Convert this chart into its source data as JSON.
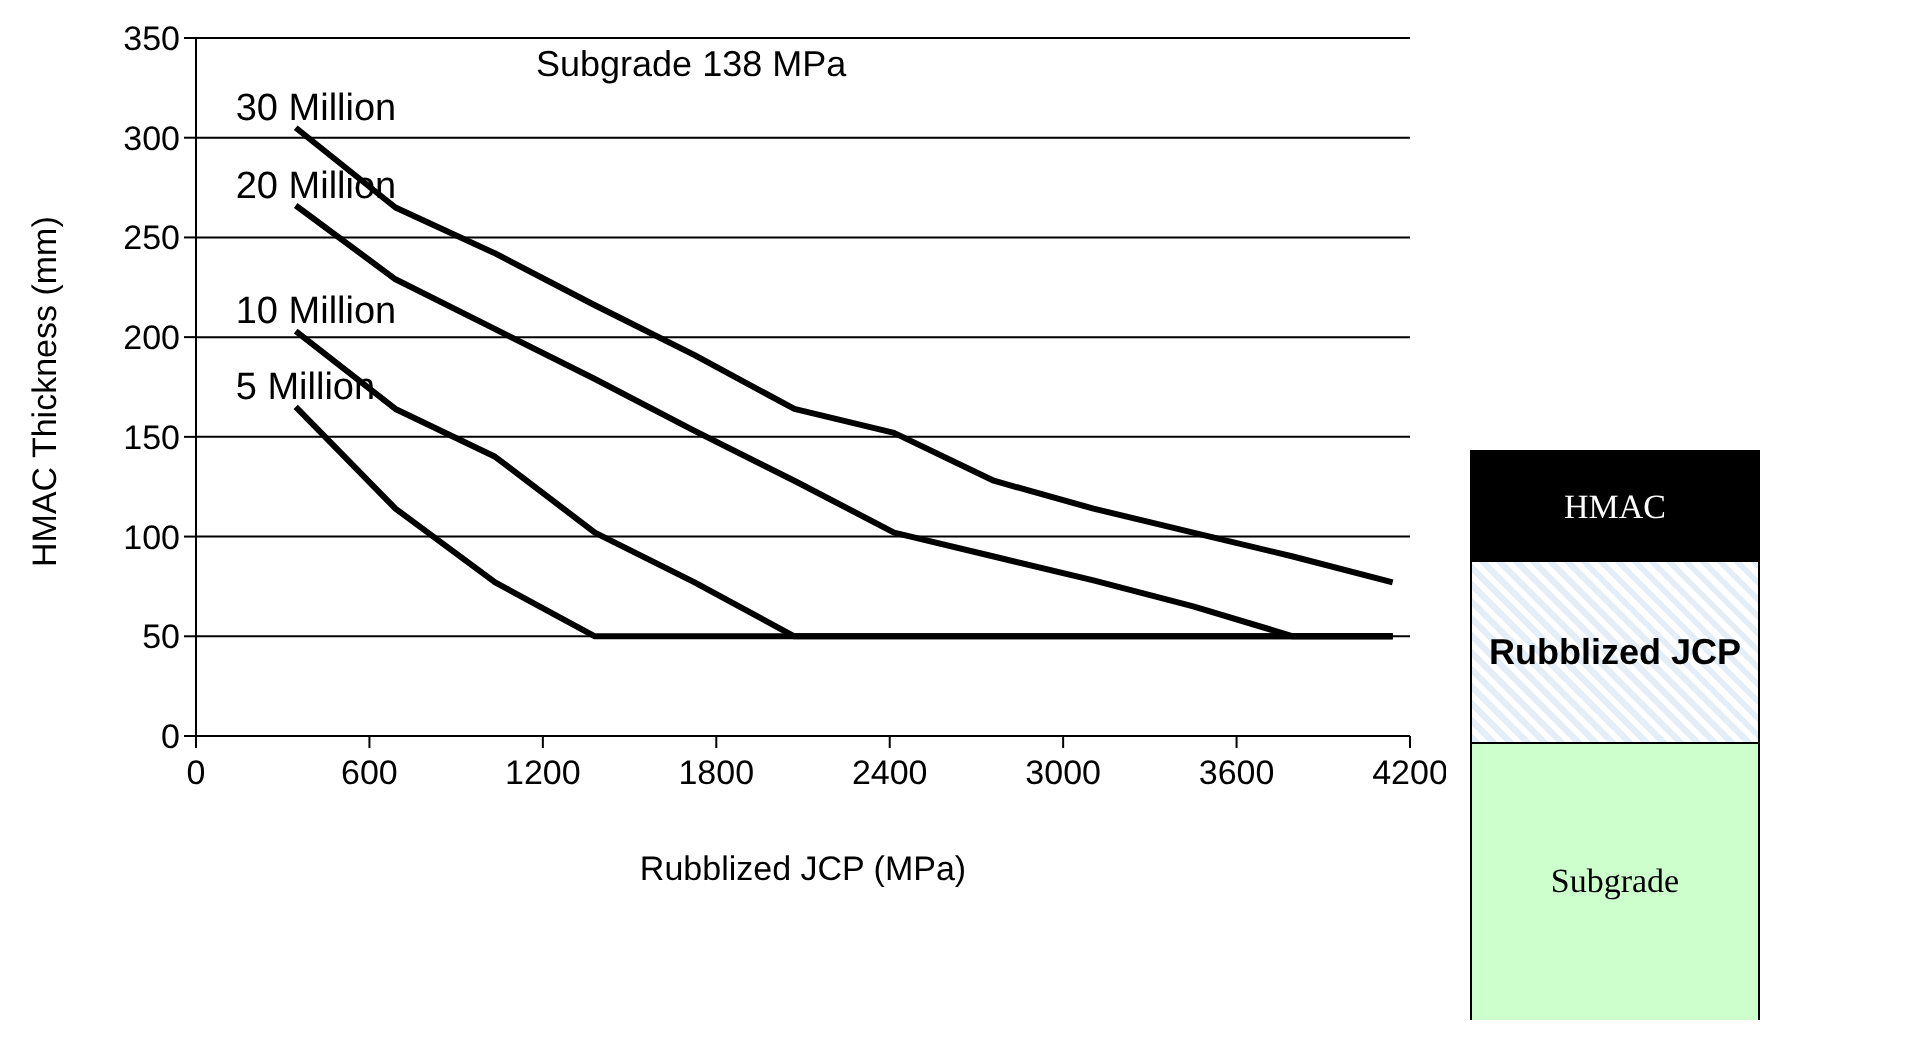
{
  "chart_data": {
    "type": "line",
    "title": "Subgrade 138 MPa",
    "xlabel": "Rubblized JCP (MPa)",
    "ylabel": "HMAC Thickness (mm)",
    "x": [
      345,
      690,
      1035,
      1380,
      1725,
      2070,
      2415,
      2760,
      3105,
      3450,
      3795,
      4140
    ],
    "series": [
      {
        "name": "30 Million",
        "color": "#000000",
        "values": [
          305,
          265,
          242,
          216,
          191,
          164,
          152,
          128,
          114,
          102,
          90,
          77
        ]
      },
      {
        "name": "20 Million",
        "color": "#000000",
        "values": [
          266,
          229,
          204,
          179,
          153,
          128,
          102,
          90,
          78,
          65,
          50,
          50
        ]
      },
      {
        "name": "10 Million",
        "color": "#000000",
        "values": [
          203,
          164,
          140,
          102,
          77,
          50,
          50,
          50,
          50,
          50,
          50,
          50
        ]
      },
      {
        "name": "5 Million",
        "color": "#000000",
        "values": [
          165,
          114,
          77,
          50,
          50,
          50,
          50,
          50,
          50,
          50,
          50,
          50
        ]
      }
    ],
    "xlim": [
      0,
      4200
    ],
    "xticks": [
      0,
      600,
      1200,
      1800,
      2400,
      3000,
      3600,
      4200
    ],
    "ylim": [
      0,
      350
    ],
    "yticks": [
      0,
      50,
      100,
      150,
      200,
      250,
      300,
      350
    ],
    "grid": "y",
    "marker": "none",
    "line_style": "solid",
    "annotations": [
      "HMAC",
      "Rubblized JCP",
      "Subgrade"
    ]
  }
}
